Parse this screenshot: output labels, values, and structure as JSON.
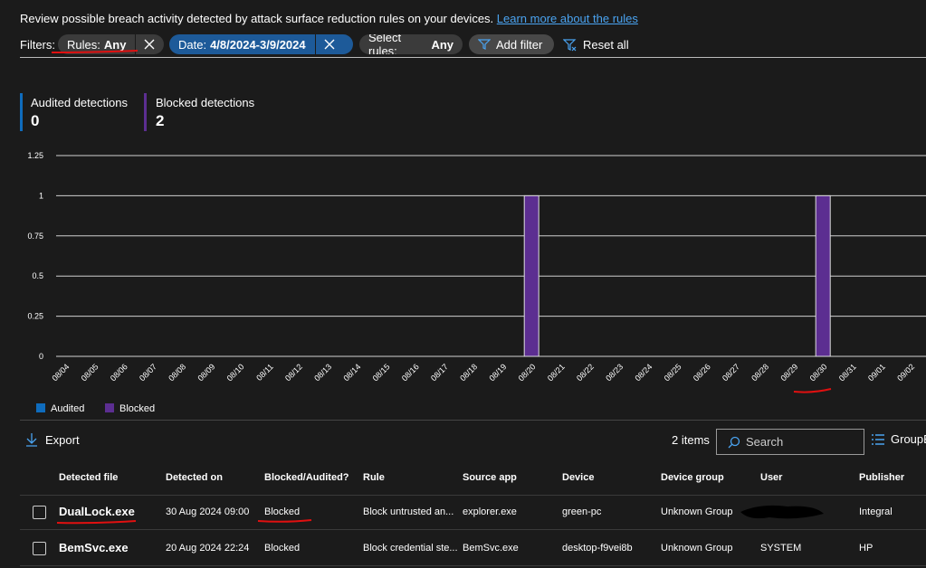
{
  "header": {
    "description": "Review possible breach activity detected by attack surface reduction rules on your devices.",
    "link": "Learn more about the rules"
  },
  "filters": {
    "label": "Filters:",
    "chips": [
      {
        "name": "Rules:",
        "value": "Any"
      },
      {
        "name": "Date:",
        "value": "4/8/2024-3/9/2024"
      },
      {
        "name": "Select rules:",
        "value": "Any"
      }
    ],
    "add": "Add filter",
    "reset": "Reset all"
  },
  "summary": [
    {
      "label": "Audited detections",
      "value": 0,
      "color": "#0f6cbd"
    },
    {
      "label": "Blocked detections",
      "value": 2,
      "color": "#5c2e91"
    }
  ],
  "chart_data": {
    "type": "bar",
    "stacked": true,
    "categories": [
      "08/04",
      "08/05",
      "08/06",
      "08/07",
      "08/08",
      "08/09",
      "08/10",
      "08/11",
      "08/12",
      "08/13",
      "08/14",
      "08/15",
      "08/16",
      "08/17",
      "08/18",
      "08/19",
      "08/20",
      "08/21",
      "08/22",
      "08/23",
      "08/24",
      "08/25",
      "08/26",
      "08/27",
      "08/28",
      "08/29",
      "08/30",
      "08/31",
      "09/01",
      "09/02"
    ],
    "series": [
      {
        "name": "Audited",
        "color": "#0f6cbd",
        "values": [
          0,
          0,
          0,
          0,
          0,
          0,
          0,
          0,
          0,
          0,
          0,
          0,
          0,
          0,
          0,
          0,
          0,
          0,
          0,
          0,
          0,
          0,
          0,
          0,
          0,
          0,
          0,
          0,
          0,
          0
        ]
      },
      {
        "name": "Blocked",
        "color": "#5c2e91",
        "values": [
          0,
          0,
          0,
          0,
          0,
          0,
          0,
          0,
          0,
          0,
          0,
          0,
          0,
          0,
          0,
          0,
          1,
          0,
          0,
          0,
          0,
          0,
          0,
          0,
          0,
          0,
          1,
          0,
          0,
          0
        ]
      }
    ],
    "ylim": [
      0,
      1.25
    ],
    "yticks": [
      0,
      0.25,
      0.5,
      0.75,
      1,
      1.25
    ],
    "grid": true,
    "legend": "bottom-left"
  },
  "toolbar": {
    "export": "Export",
    "count": "2 items",
    "search": "Search",
    "group": "GroupBy"
  },
  "table": {
    "columns": [
      "Detected file",
      "Detected on",
      "Blocked/Audited?",
      "Rule",
      "Source app",
      "Device",
      "Device group",
      "User",
      "Publisher"
    ],
    "rows": [
      [
        "DualLock.exe",
        "30 Aug 2024 09:00",
        "Blocked",
        "Block untrusted an...",
        "explorer.exe",
        "green-pc",
        "Unknown Group",
        null,
        "Integral"
      ],
      [
        "BemSvc.exe",
        "20 Aug 2024 22:24",
        "Blocked",
        "Block credential ste...",
        "BemSvc.exe",
        "desktop-f9vei8b",
        "Unknown Group",
        "SYSTEM",
        "HP"
      ]
    ]
  }
}
